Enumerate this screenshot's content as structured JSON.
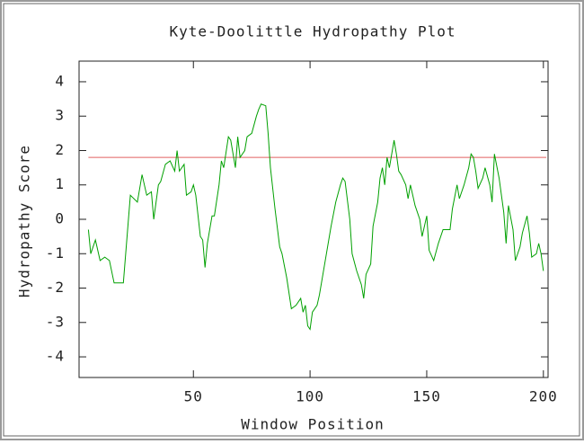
{
  "chart_data": {
    "type": "line",
    "title": "Kyte-Doolittle Hydropathy Plot",
    "x_label": "Window Position",
    "y_label": "Hydropathy Score",
    "x": [
      5,
      6,
      8,
      10,
      12,
      14,
      16,
      20,
      23,
      26,
      28,
      30,
      32,
      33,
      35,
      36,
      38,
      40,
      42,
      43,
      44,
      46,
      47,
      49,
      50,
      51,
      53,
      54,
      55,
      56,
      58,
      59,
      61,
      62,
      63,
      65,
      66,
      68,
      69,
      70,
      72,
      73,
      75,
      77,
      78,
      79,
      81,
      82,
      83,
      85,
      87,
      88,
      90,
      92,
      94,
      96,
      97,
      98,
      99,
      100,
      101,
      103,
      104,
      105,
      107,
      109,
      111,
      113,
      114,
      115,
      117,
      118,
      120,
      122,
      123,
      124,
      126,
      127,
      129,
      130,
      131,
      132,
      133,
      134,
      136,
      137,
      138,
      139,
      141,
      142,
      143,
      145,
      147,
      148,
      150,
      151,
      153,
      155,
      157,
      160,
      161,
      163,
      164,
      166,
      168,
      169,
      170,
      171,
      172,
      174,
      175,
      177,
      178,
      179,
      181,
      183,
      184,
      185,
      187,
      188,
      190,
      191,
      193,
      194,
      195,
      197,
      198,
      199,
      200
    ],
    "series": [
      {
        "color": "#00a000",
        "values": [
          -0.3,
          -1.0,
          -0.6,
          -1.2,
          -1.1,
          -1.2,
          -1.85,
          -1.85,
          0.7,
          0.5,
          1.3,
          0.7,
          0.8,
          0,
          1.0,
          1.1,
          1.6,
          1.7,
          1.4,
          2.0,
          1.4,
          1.6,
          0.7,
          0.8,
          1.0,
          0.7,
          -0.5,
          -0.6,
          -1.4,
          -0.7,
          0.1,
          0.1,
          1.0,
          1.7,
          1.5,
          2.4,
          2.3,
          1.5,
          2.4,
          1.8,
          2.0,
          2.4,
          2.5,
          3.0,
          3.2,
          3.35,
          3.3,
          2.5,
          1.5,
          0.3,
          -0.8,
          -1.0,
          -1.7,
          -2.6,
          -2.5,
          -2.3,
          -2.7,
          -2.5,
          -3.1,
          -3.2,
          -2.7,
          -2.5,
          -2.2,
          -1.8,
          -1.0,
          -0.2,
          0.5,
          1.0,
          1.2,
          1.1,
          0,
          -1.0,
          -1.5,
          -1.9,
          -2.3,
          -1.6,
          -1.3,
          -0.2,
          0.5,
          1.2,
          1.5,
          1.0,
          1.8,
          1.5,
          2.3,
          1.9,
          1.4,
          1.3,
          1.0,
          0.6,
          1.0,
          0.4,
          0,
          -0.5,
          0.1,
          -0.9,
          -1.2,
          -0.7,
          -0.3,
          -0.3,
          0.3,
          1.0,
          0.6,
          1.0,
          1.5,
          1.9,
          1.8,
          1.4,
          0.9,
          1.2,
          1.5,
          1.0,
          0.5,
          1.9,
          1.2,
          0.2,
          -0.7,
          0.4,
          -0.3,
          -1.2,
          -0.8,
          -0.4,
          0.1,
          -0.4,
          -1.1,
          -1.0,
          -0.7,
          -1.0,
          -1.5
        ]
      }
    ],
    "threshold": 1.8,
    "threshold_color": "#e06060",
    "xlim": [
      1,
      202
    ],
    "xticks": [
      50,
      100,
      150,
      200
    ],
    "ylim": [
      -4.6,
      4.6
    ],
    "yticks": [
      -4,
      -3,
      -2,
      -1,
      0,
      1,
      2,
      3,
      4
    ]
  }
}
